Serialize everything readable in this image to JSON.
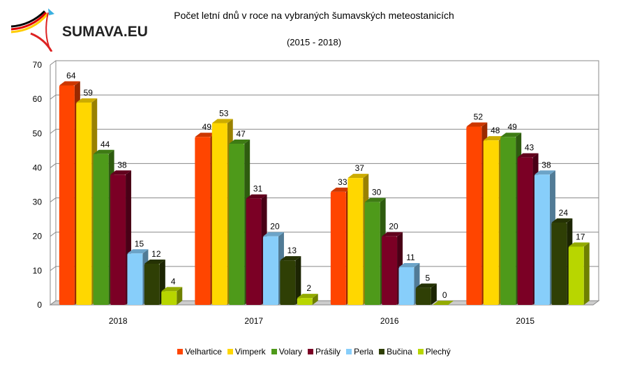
{
  "logo": {
    "text": "SUMAVA.EU"
  },
  "chart_data": {
    "type": "bar",
    "title": "Počet letní dnů v roce na vybraných šumavských meteostanicích",
    "subtitle": "(2015 - 2018)",
    "categories": [
      "2018",
      "2017",
      "2016",
      "2015"
    ],
    "ylim": [
      0,
      70
    ],
    "yticks": [
      "0",
      "10",
      "20",
      "30",
      "40",
      "50",
      "60",
      "70"
    ],
    "legend_position": "bottom",
    "series": [
      {
        "name": "Velhartice",
        "color": "#FF4500",
        "values": [
          64,
          49,
          33,
          52
        ]
      },
      {
        "name": "Vimperk",
        "color": "#FFD700",
        "values": [
          59,
          53,
          37,
          48
        ]
      },
      {
        "name": "Volary",
        "color": "#4E9A1A",
        "values": [
          44,
          47,
          30,
          49
        ]
      },
      {
        "name": "Prášily",
        "color": "#7B0025",
        "values": [
          38,
          31,
          20,
          43
        ]
      },
      {
        "name": "Perla",
        "color": "#87CEFA",
        "values": [
          15,
          20,
          11,
          38
        ]
      },
      {
        "name": "Bučina",
        "color": "#2F3F05",
        "values": [
          12,
          13,
          5,
          24
        ]
      },
      {
        "name": "Plechý",
        "color": "#B8D600",
        "values": [
          4,
          2,
          0,
          17
        ]
      }
    ]
  }
}
